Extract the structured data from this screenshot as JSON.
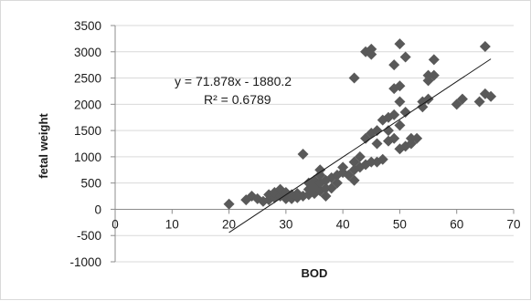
{
  "chart_data": {
    "type": "scatter",
    "xlabel": "BOD",
    "ylabel": "fetal weight",
    "xlim": [
      0,
      70
    ],
    "ylim": [
      -1000,
      3500
    ],
    "xticks": [
      "0",
      "10",
      "20",
      "30",
      "40",
      "50",
      "60",
      "70"
    ],
    "yticks": [
      "3500",
      "3000",
      "2500",
      "2000",
      "1500",
      "1000",
      "500",
      "0",
      "-500",
      "-1000"
    ],
    "grid": "horizontal",
    "marker": "diamond",
    "marker_color": "#595959",
    "trendline": {
      "type": "linear",
      "slope": 71.878,
      "intercept": -1880.2,
      "equation": "y = 71.878x - 1880.2",
      "r_squared": "R² = 0.6789",
      "x_range": [
        20,
        66
      ]
    },
    "series": [
      {
        "points": [
          [
            20,
            100
          ],
          [
            23,
            180
          ],
          [
            24,
            250
          ],
          [
            25,
            200
          ],
          [
            26,
            150
          ],
          [
            27,
            180
          ],
          [
            27,
            280
          ],
          [
            28,
            220
          ],
          [
            28,
            320
          ],
          [
            29,
            250
          ],
          [
            29,
            380
          ],
          [
            30,
            200
          ],
          [
            30,
            320
          ],
          [
            31,
            200
          ],
          [
            31,
            280
          ],
          [
            32,
            300
          ],
          [
            32,
            220
          ],
          [
            33,
            250
          ],
          [
            33,
            1050
          ],
          [
            34,
            280
          ],
          [
            34,
            380
          ],
          [
            34,
            500
          ],
          [
            35,
            300
          ],
          [
            35,
            420
          ],
          [
            35,
            550
          ],
          [
            36,
            350
          ],
          [
            36,
            500
          ],
          [
            36,
            650
          ],
          [
            36,
            750
          ],
          [
            37,
            250
          ],
          [
            37,
            400
          ],
          [
            37,
            550
          ],
          [
            38,
            400
          ],
          [
            38,
            600
          ],
          [
            39,
            500
          ],
          [
            39,
            650
          ],
          [
            40,
            700
          ],
          [
            40,
            800
          ],
          [
            41,
            650
          ],
          [
            42,
            550
          ],
          [
            42,
            750
          ],
          [
            42,
            900
          ],
          [
            42,
            2500
          ],
          [
            43,
            800
          ],
          [
            43,
            1000
          ],
          [
            44,
            850
          ],
          [
            44,
            1350
          ],
          [
            44,
            3000
          ],
          [
            45,
            900
          ],
          [
            45,
            1450
          ],
          [
            45,
            3050
          ],
          [
            45,
            2950
          ],
          [
            46,
            900
          ],
          [
            46,
            1250
          ],
          [
            46,
            1500
          ],
          [
            47,
            950
          ],
          [
            47,
            1700
          ],
          [
            48,
            1750
          ],
          [
            48,
            1300
          ],
          [
            48,
            1500
          ],
          [
            49,
            1350
          ],
          [
            49,
            2300
          ],
          [
            49,
            2750
          ],
          [
            49,
            1800
          ],
          [
            50,
            2350
          ],
          [
            50,
            2050
          ],
          [
            50,
            1150
          ],
          [
            50,
            1600
          ],
          [
            50,
            3150
          ],
          [
            51,
            1200
          ],
          [
            51,
            1850
          ],
          [
            51,
            2900
          ],
          [
            52,
            1250
          ],
          [
            52,
            1350
          ],
          [
            53,
            1350
          ],
          [
            54,
            1950
          ],
          [
            54,
            2050
          ],
          [
            55,
            2100
          ],
          [
            55,
            2450
          ],
          [
            55,
            2550
          ],
          [
            56,
            2850
          ],
          [
            56,
            2550
          ],
          [
            60,
            2000
          ],
          [
            61,
            2100
          ],
          [
            64,
            2050
          ],
          [
            65,
            2200
          ],
          [
            65,
            3100
          ],
          [
            66,
            2150
          ]
        ]
      }
    ]
  }
}
